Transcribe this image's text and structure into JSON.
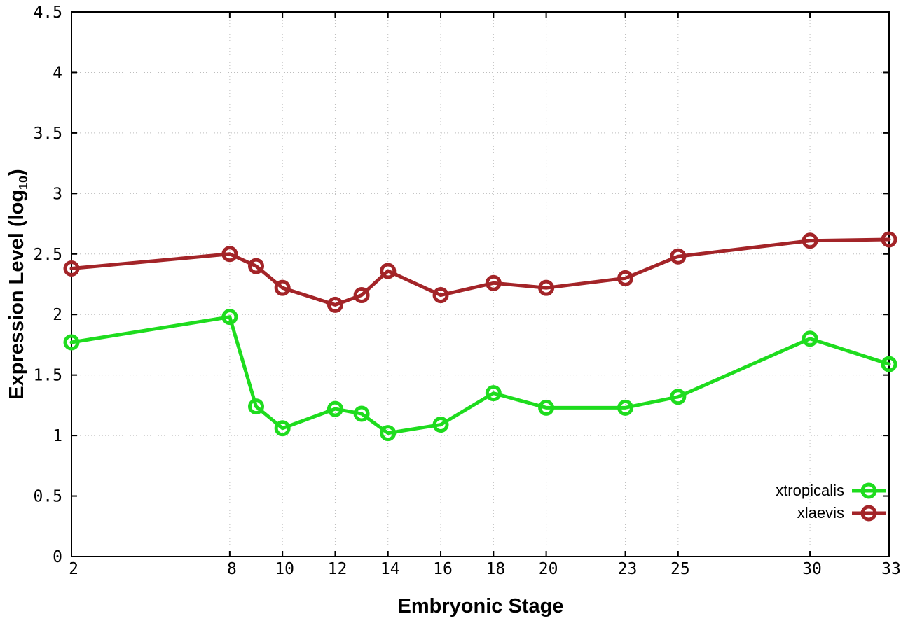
{
  "figure": {
    "xlabel": "Embryonic Stage",
    "ylabel_pre": "Expression Level (log",
    "ylabel_sub": "10",
    "ylabel_post": ")",
    "background": "#ffffff",
    "axis_color": "#000000",
    "grid_color": "#bdbdbd"
  },
  "chart_data": {
    "type": "line",
    "title": "",
    "xlabel": "Embryonic Stage",
    "ylabel": "Expression Level (log10)",
    "x": [
      2,
      8,
      9,
      10,
      12,
      13,
      14,
      16,
      18,
      20,
      23,
      25,
      30,
      33
    ],
    "series": [
      {
        "name": "xtropicalis",
        "color": "#1edc1e",
        "marker": "open-circle",
        "values": [
          1.77,
          1.98,
          1.24,
          1.06,
          1.22,
          1.18,
          1.02,
          1.09,
          1.35,
          1.23,
          1.23,
          1.32,
          1.8,
          1.59
        ]
      },
      {
        "name": "xlaevis",
        "color": "#a32428",
        "marker": "open-circle",
        "values": [
          2.38,
          2.5,
          2.4,
          2.22,
          2.08,
          2.16,
          2.36,
          2.16,
          2.26,
          2.22,
          2.3,
          2.48,
          2.61,
          2.62
        ]
      }
    ],
    "xlim": [
      2,
      33
    ],
    "ylim": [
      0,
      4.5
    ],
    "xticks": [
      2,
      8,
      10,
      12,
      14,
      16,
      18,
      20,
      23,
      25,
      30,
      33
    ],
    "yticks": [
      0,
      0.5,
      1,
      1.5,
      2,
      2.5,
      3,
      3.5,
      4,
      4.5
    ],
    "grid": true,
    "legend_position": "lower-right-inside"
  }
}
